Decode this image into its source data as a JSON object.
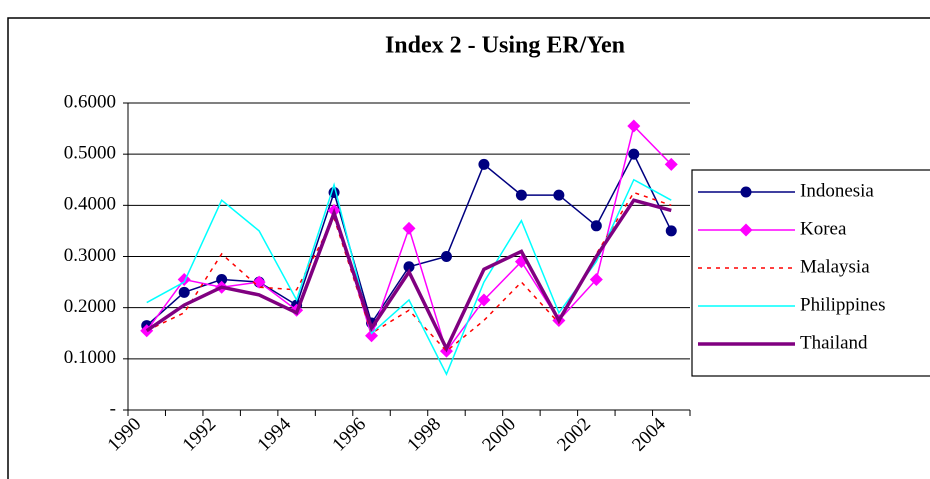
{
  "chart_data": {
    "type": "line",
    "title": "Index 2 - Using ER/Yen",
    "categories": [
      "1990",
      null,
      "1992",
      null,
      "1994",
      null,
      "1996",
      null,
      "1998",
      null,
      "2000",
      null,
      "2002",
      null,
      "2004"
    ],
    "series": [
      {
        "name": "Indonesia",
        "color": "#000080",
        "marker": "circle",
        "values": [
          0.165,
          0.23,
          0.255,
          0.25,
          0.205,
          0.425,
          0.17,
          0.28,
          0.3,
          0.48,
          0.42,
          0.42,
          0.36,
          0.5,
          0.35
        ]
      },
      {
        "name": "Korea",
        "color": "#ff00ff",
        "marker": "diamond",
        "values": [
          0.155,
          0.255,
          0.24,
          0.25,
          0.195,
          0.39,
          0.145,
          0.355,
          0.115,
          0.215,
          0.29,
          0.175,
          0.255,
          0.555,
          0.48
        ]
      },
      {
        "name": "Malaysia",
        "color": "#ff0000",
        "dash": true,
        "values": [
          0.155,
          0.19,
          0.305,
          0.24,
          0.235,
          0.375,
          0.15,
          0.195,
          0.115,
          0.175,
          0.25,
          0.17,
          0.305,
          0.425,
          0.4
        ]
      },
      {
        "name": "Philippines",
        "color": "#00ffff",
        "values": [
          0.21,
          0.25,
          0.41,
          0.35,
          0.215,
          0.44,
          0.15,
          0.215,
          0.07,
          0.25,
          0.37,
          0.19,
          0.29,
          0.45,
          0.41
        ]
      },
      {
        "name": "Thailand",
        "color": "#800080",
        "thick": true,
        "values": [
          0.155,
          0.205,
          0.24,
          0.225,
          0.19,
          0.385,
          0.16,
          0.27,
          0.12,
          0.275,
          0.31,
          0.175,
          0.3,
          0.41,
          0.39
        ]
      }
    ],
    "ylim": [
      0,
      0.6
    ],
    "yticks": [
      {
        "value": 0,
        "label": "-"
      },
      {
        "value": 0.1,
        "label": "0.1000"
      },
      {
        "value": 0.2,
        "label": "0.2000"
      },
      {
        "value": 0.3,
        "label": "0.3000"
      },
      {
        "value": 0.4,
        "label": "0.4000"
      },
      {
        "value": 0.5,
        "label": "0.5000"
      },
      {
        "value": 0.6,
        "label": "0.6000"
      }
    ],
    "grid": true,
    "legend": "right"
  }
}
